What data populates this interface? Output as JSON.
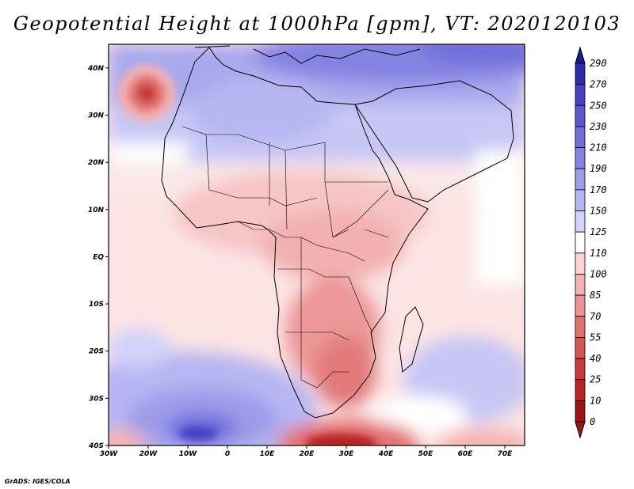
{
  "title": "Geopotential Height at 1000hPa [gpm], VT: 2020120103",
  "credit": "GrADS: IGES/COLA",
  "lat_ticks": [
    "40N",
    "30N",
    "20N",
    "10N",
    "EQ",
    "10S",
    "20S",
    "30S",
    "40S"
  ],
  "lon_ticks": [
    "30W",
    "20W",
    "10W",
    "0",
    "10E",
    "20E",
    "30E",
    "40E",
    "50E",
    "60E",
    "70E"
  ],
  "map": {
    "lon_range": [
      -30,
      75
    ],
    "lat_range": [
      -40,
      45
    ],
    "variable": "geopotential height",
    "level": "1000hPa",
    "units": "gpm",
    "valid_time": "2020120103"
  },
  "colorbar": {
    "levels": [
      "290",
      "270",
      "250",
      "230",
      "210",
      "190",
      "170",
      "150",
      "125",
      "110",
      "100",
      "85",
      "70",
      "55",
      "40",
      "25",
      "10",
      "0"
    ],
    "colors": [
      "#1e1a9c",
      "#2f2bb0",
      "#4540c4",
      "#5a57cf",
      "#6f6dd9",
      "#8583e2",
      "#9d9cea",
      "#b7b6f2",
      "#d3d2fa",
      "#ffffff",
      "#fbd4d4",
      "#f4b3b3",
      "#ec9393",
      "#e27272",
      "#d75454",
      "#c93939",
      "#b82424",
      "#9e1414"
    ]
  }
}
